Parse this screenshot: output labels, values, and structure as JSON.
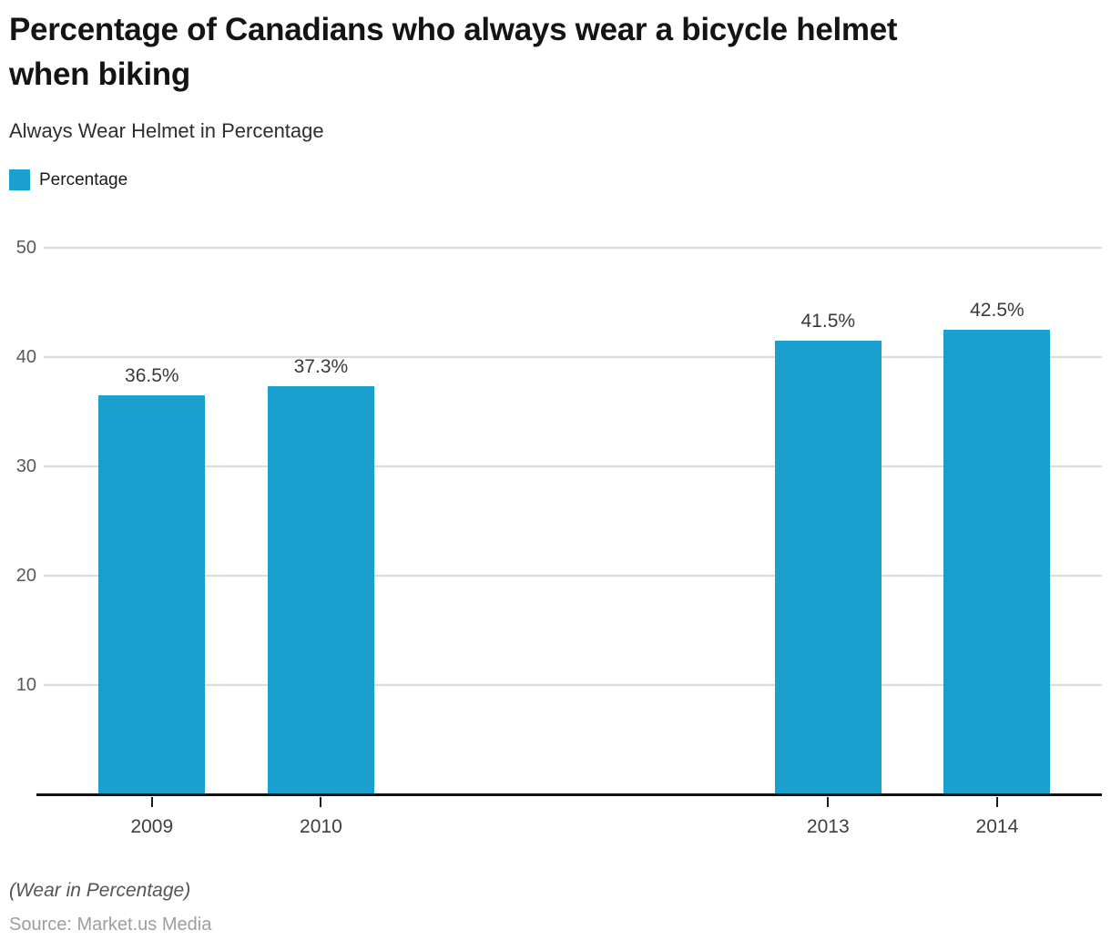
{
  "header": {
    "title_line1": "Percentage of Canadians who always wear a bicycle helmet",
    "title_line2": "when biking",
    "subtitle": "Always Wear Helmet in Percentage"
  },
  "chart_data": {
    "type": "bar",
    "title": "Percentage of Canadians who always wear a bicycle helmet when biking",
    "subtitle": "Always Wear Helmet in Percentage",
    "series_name": "Percentage",
    "categories": [
      "2009",
      "2010",
      "2013",
      "2014"
    ],
    "x_values": [
      2009,
      2010,
      2013,
      2014
    ],
    "values": [
      36.5,
      37.3,
      41.5,
      42.5
    ],
    "value_labels": [
      "36.5%",
      "37.3%",
      "41.5%",
      "42.5%"
    ],
    "ylim": [
      0,
      50
    ],
    "yticks": [
      10,
      20,
      30,
      40,
      50
    ],
    "x_range": [
      2008.36,
      2014.62
    ],
    "grid": true,
    "legend_position": "top-left",
    "colors": {
      "bar": "#1AA0CE",
      "gridline": "#DBDBDB",
      "axis_line": "#111111",
      "tick": "#1a1a1a"
    }
  },
  "footer": {
    "note": "(Wear in Percentage)",
    "source": "Source: Market.us Media"
  }
}
